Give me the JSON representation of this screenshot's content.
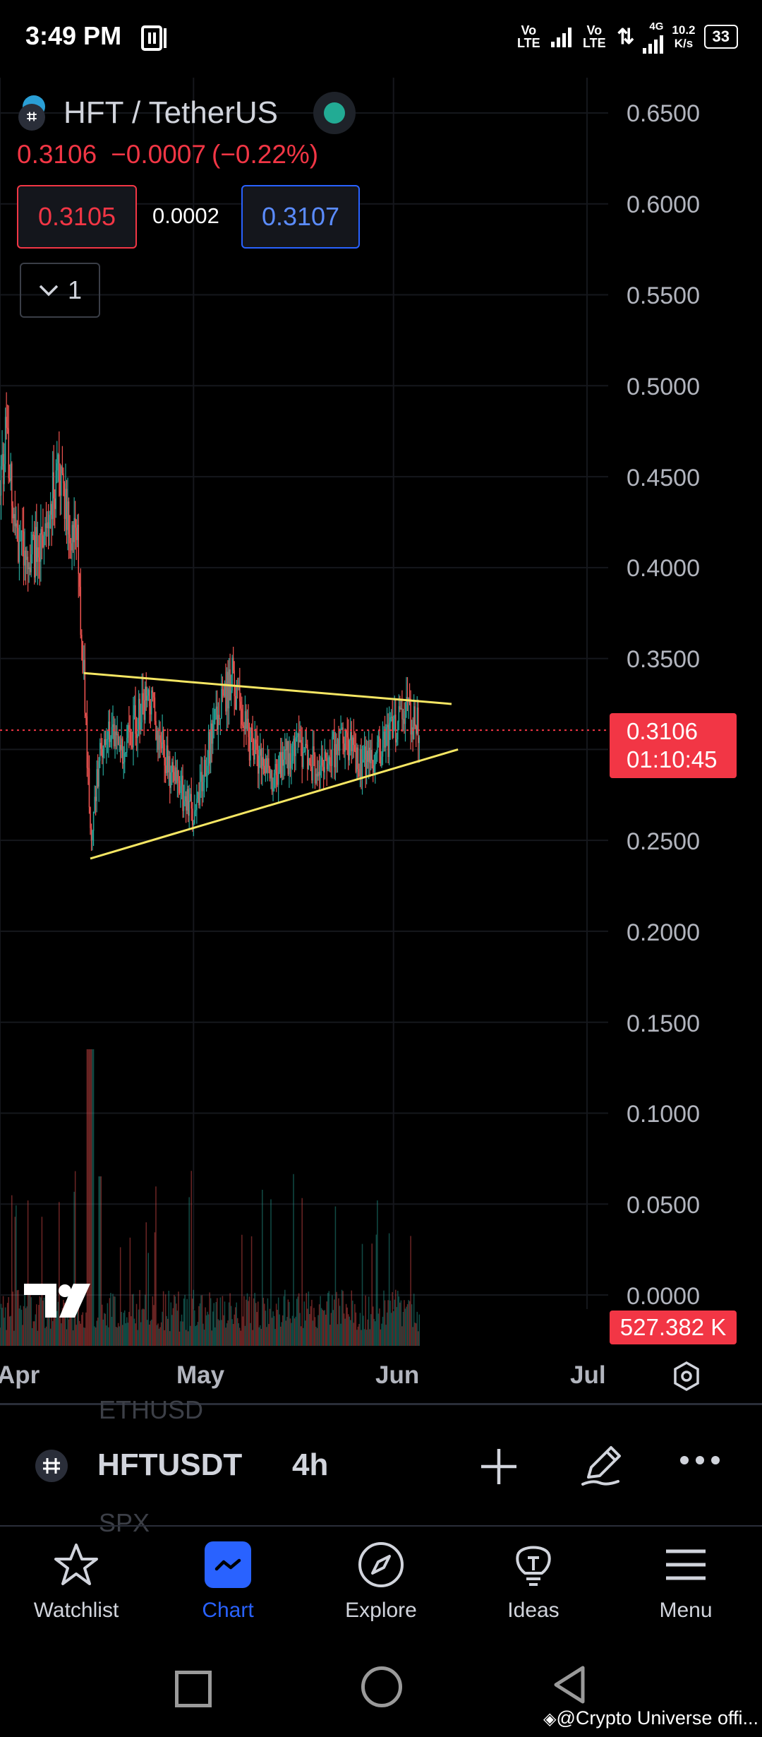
{
  "status_bar": {
    "time": "3:49 PM",
    "sim1": "Vo LTE",
    "sim2": "Vo LTE",
    "network": "4G",
    "speed_value": "10.2",
    "speed_unit": "K/s",
    "battery": "33"
  },
  "header": {
    "symbol_title": "HFT / TetherUS",
    "last_price": "0.3106",
    "change": "−0.0007",
    "change_pct": "(−0.22%)",
    "bid": "0.3105",
    "spread": "0.0002",
    "ask": "0.3107",
    "interval_dropdown": "1"
  },
  "price_axis": {
    "labels": [
      "0.6500",
      "0.6000",
      "0.5500",
      "0.5000",
      "0.4500",
      "0.4000",
      "0.3500",
      "0.3106",
      "0.2500",
      "0.2000",
      "0.1500",
      "0.1000",
      "0.0500",
      "0.0000"
    ],
    "last_price_tag": "0.3106",
    "countdown": "01:10:45",
    "volume_tag": "527.382 K"
  },
  "time_axis": {
    "labels": [
      "Apr",
      "May",
      "Jun",
      "Jul"
    ]
  },
  "chart_data": {
    "type": "candlestick",
    "symbol": "HFTUSDT",
    "interval": "4h",
    "y_range": [
      0.0,
      0.65
    ],
    "x_labels": [
      "Apr",
      "May",
      "Jun",
      "Jul"
    ],
    "last_price": 0.3106,
    "price_path": [
      [
        "Apr 1",
        0.44
      ],
      [
        "Apr 2",
        0.48
      ],
      [
        "Apr 3",
        0.43
      ],
      [
        "Apr 5",
        0.4
      ],
      [
        "Apr 8",
        0.42
      ],
      [
        "Apr 10",
        0.455
      ],
      [
        "Apr 11",
        0.43
      ],
      [
        "Apr 13",
        0.41
      ],
      [
        "Apr 14",
        0.34
      ],
      [
        "Apr 15",
        0.25
      ],
      [
        "Apr 17",
        0.31
      ],
      [
        "Apr 20",
        0.3
      ],
      [
        "Apr 24",
        0.33
      ],
      [
        "Apr 27",
        0.29
      ],
      [
        "May 1",
        0.265
      ],
      [
        "May 4",
        0.31
      ],
      [
        "May 7",
        0.34
      ],
      [
        "May 10",
        0.3
      ],
      [
        "May 13",
        0.285
      ],
      [
        "May 17",
        0.3
      ],
      [
        "May 20",
        0.29
      ],
      [
        "May 24",
        0.305
      ],
      [
        "May 28",
        0.29
      ],
      [
        "Jun 1",
        0.31
      ],
      [
        "Jun 3",
        0.32
      ],
      [
        "Jun 5",
        0.3106
      ]
    ],
    "trendlines": [
      {
        "name": "upper",
        "from": [
          "Apr 14",
          0.342
        ],
        "to": [
          "Jun 10",
          0.325
        ]
      },
      {
        "name": "lower",
        "from": [
          "Apr 15",
          0.24
        ],
        "to": [
          "Jun 11",
          0.3
        ]
      }
    ],
    "volume_last": "527.382 K"
  },
  "toolbar": {
    "symbol": "HFTUSDT",
    "interval": "4h",
    "ghost_above": "ETHUSD",
    "ghost_below": "SPX"
  },
  "nav": {
    "items": [
      {
        "label": "Watchlist"
      },
      {
        "label": "Chart"
      },
      {
        "label": "Explore"
      },
      {
        "label": "Ideas"
      },
      {
        "label": "Menu"
      }
    ]
  },
  "watermark": "@Crypto Universe offi..."
}
